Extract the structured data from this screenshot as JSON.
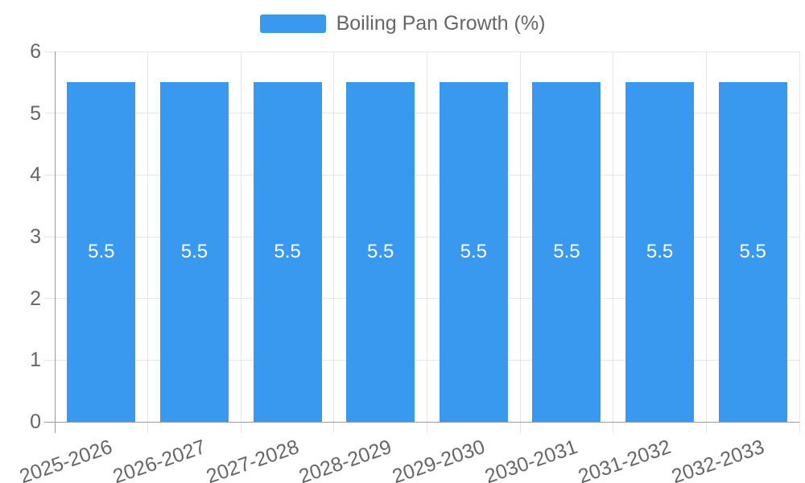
{
  "chart_data": {
    "type": "bar",
    "title": "Boiling Pan Growth (%)",
    "categories": [
      "2025-2026",
      "2026-2027",
      "2027-2028",
      "2028-2029",
      "2029-2030",
      "2030-2031",
      "2031-2032",
      "2032-2033"
    ],
    "series": [
      {
        "name": "Boiling Pan Growth (%)",
        "values": [
          5.5,
          5.5,
          5.5,
          5.5,
          5.5,
          5.5,
          5.5,
          5.5
        ]
      }
    ],
    "value_labels": [
      "5.5",
      "5.5",
      "5.5",
      "5.5",
      "5.5",
      "5.5",
      "5.5",
      "5.5"
    ],
    "xlabel": "",
    "ylabel": "",
    "ylim": [
      0,
      6
    ],
    "yticks": [
      "0",
      "1",
      "2",
      "3",
      "4",
      "5",
      "6"
    ],
    "grid": true,
    "legend_position": "top",
    "x_tick_rotation_deg": -19
  },
  "legend": {
    "label": "Boiling Pan Growth (%)"
  },
  "colors": {
    "bar": "#3999EE",
    "grid": "#e6e6e6",
    "axis": "#9b9b9b",
    "text": "#666666",
    "value_label": "#ffffff",
    "background": "#ffffff"
  }
}
